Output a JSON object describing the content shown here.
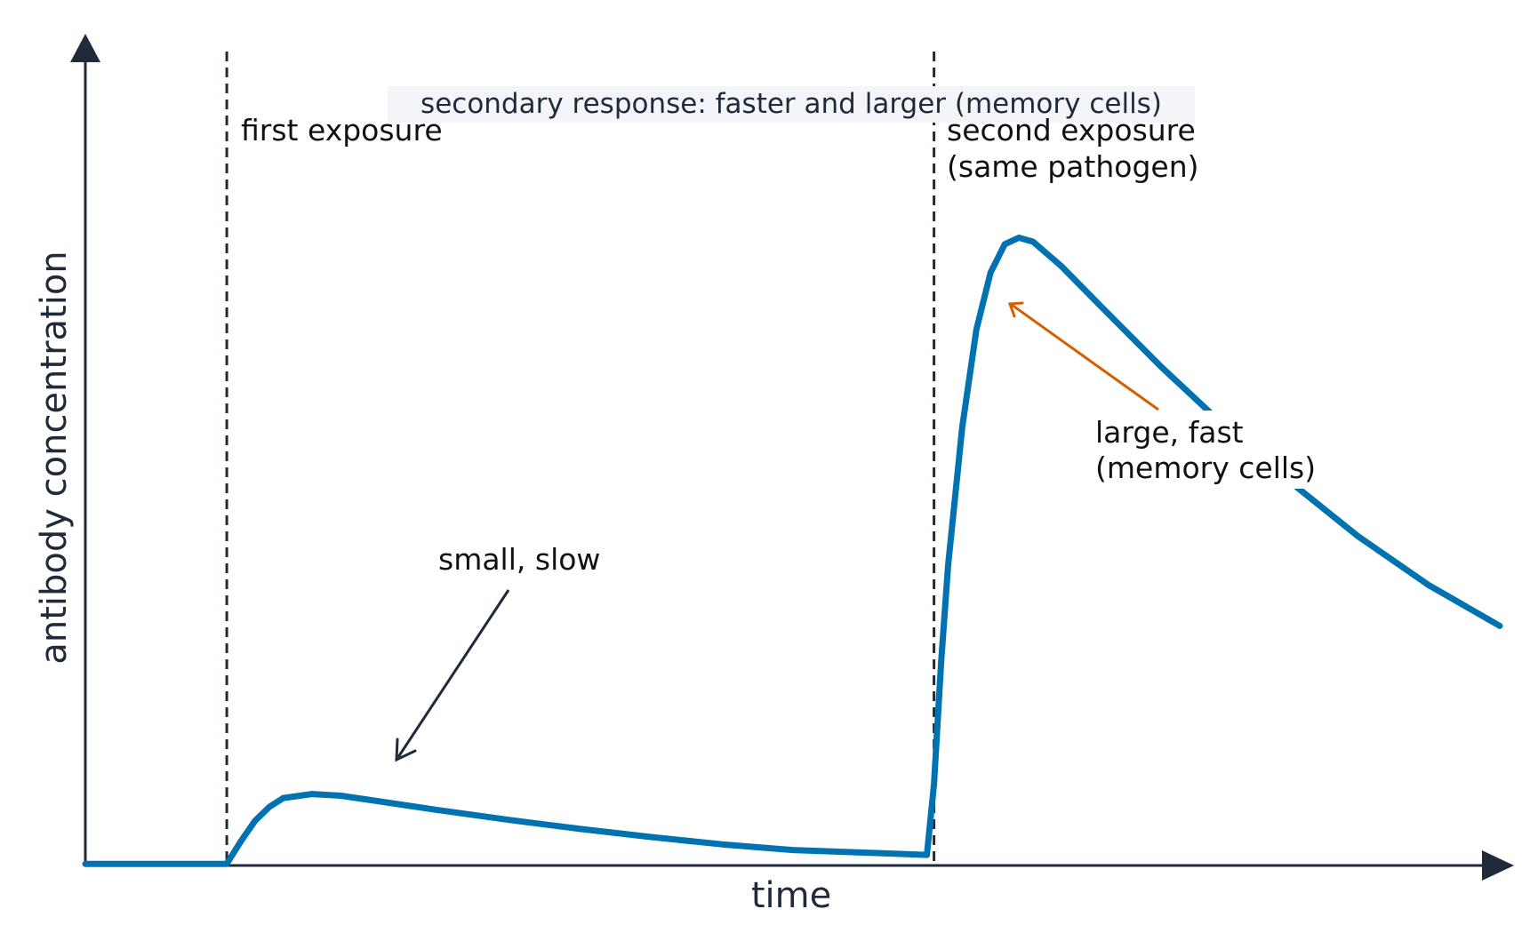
{
  "chart_data": {
    "type": "line",
    "title": "",
    "xlabel": "time",
    "ylabel": "antibody concentration",
    "xlim": [
      0,
      100
    ],
    "ylim": [
      0,
      100
    ],
    "grid": false,
    "legend": "none",
    "tick_labels": false,
    "series": [
      {
        "color": "#0072b2",
        "points": [
          [
            0,
            0.2
          ],
          [
            10,
            0.2
          ],
          [
            11,
            3
          ],
          [
            12,
            5.5
          ],
          [
            13,
            7.2
          ],
          [
            14,
            8.3
          ],
          [
            16,
            8.8
          ],
          [
            18,
            8.6
          ],
          [
            20,
            8.1
          ],
          [
            25,
            6.8
          ],
          [
            30,
            5.6
          ],
          [
            35,
            4.5
          ],
          [
            40,
            3.5
          ],
          [
            45,
            2.6
          ],
          [
            50,
            1.9
          ],
          [
            59.5,
            1.3
          ],
          [
            60,
            10
          ],
          [
            60.5,
            25
          ],
          [
            61,
            37
          ],
          [
            62,
            54
          ],
          [
            63,
            66
          ],
          [
            64,
            73
          ],
          [
            65,
            76.5
          ],
          [
            66,
            77.3
          ],
          [
            67,
            76.8
          ],
          [
            69,
            73.8
          ],
          [
            72,
            68.5
          ],
          [
            76,
            61.5
          ],
          [
            80,
            55
          ],
          [
            85,
            47.5
          ],
          [
            90,
            40.5
          ],
          [
            95,
            34.5
          ],
          [
            100,
            29.5
          ]
        ]
      }
    ],
    "events": [
      {
        "x": 10,
        "label": "first exposure"
      },
      {
        "x": 60,
        "label": "second exposure (same pathogen)"
      }
    ],
    "annotations": [
      {
        "text": "small, slow",
        "arrow_color": "#1f2a3a",
        "target": [
          22,
          13
        ]
      },
      {
        "text": "large, fast (memory cells)",
        "arrow_color": "#d55e00",
        "target": [
          65.5,
          81
        ]
      }
    ],
    "banner": "secondary response: faster and larger (memory cells)"
  },
  "labels": {
    "first_exposure": "first exposure",
    "second_exposure_1": "second exposure",
    "second_exposure_2": "(same pathogen)",
    "small_slow": "small, slow",
    "large_fast_1": "large, fast",
    "large_fast_2": "(memory cells)"
  }
}
